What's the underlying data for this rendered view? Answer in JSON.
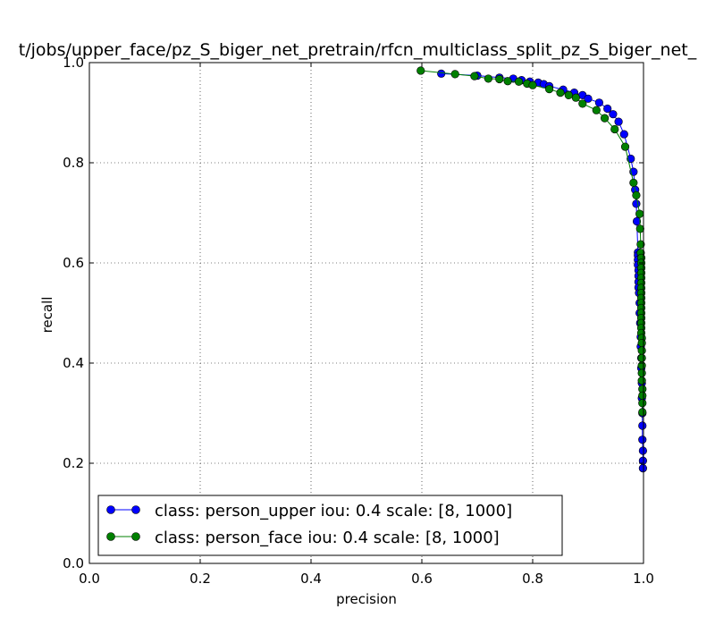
{
  "chart_data": {
    "type": "line",
    "title": "t/jobs/upper_face/pz_S_biger_net_pretrain/rfcn_multiclass_split_pz_S_biger_net_",
    "xlabel": "precision",
    "ylabel": "recall",
    "xlim": [
      0.0,
      1.0
    ],
    "ylim": [
      0.0,
      1.0
    ],
    "xticks": [
      "0.0",
      "0.2",
      "0.4",
      "0.6",
      "0.8",
      "1.0"
    ],
    "yticks": [
      "0.0",
      "0.2",
      "0.4",
      "0.6",
      "0.8",
      "1.0"
    ],
    "grid": true,
    "legend_position": "lower-left",
    "series": [
      {
        "name": "class: person_upper iou: 0.4 scale: [8, 1000]",
        "color": "#0000ff",
        "marker": "circle",
        "points": [
          [
            0.635,
            0.978
          ],
          [
            0.7,
            0.974
          ],
          [
            0.74,
            0.97
          ],
          [
            0.765,
            0.968
          ],
          [
            0.78,
            0.965
          ],
          [
            0.795,
            0.962
          ],
          [
            0.81,
            0.96
          ],
          [
            0.82,
            0.957
          ],
          [
            0.83,
            0.953
          ],
          [
            0.855,
            0.946
          ],
          [
            0.875,
            0.94
          ],
          [
            0.89,
            0.935
          ],
          [
            0.9,
            0.928
          ],
          [
            0.92,
            0.92
          ],
          [
            0.935,
            0.908
          ],
          [
            0.945,
            0.897
          ],
          [
            0.955,
            0.882
          ],
          [
            0.965,
            0.857
          ],
          [
            0.977,
            0.808
          ],
          [
            0.982,
            0.782
          ],
          [
            0.985,
            0.746
          ],
          [
            0.987,
            0.718
          ],
          [
            0.988,
            0.683
          ],
          [
            0.99,
            0.621
          ],
          [
            0.99,
            0.615
          ],
          [
            0.99,
            0.606
          ],
          [
            0.99,
            0.596
          ],
          [
            0.991,
            0.585
          ],
          [
            0.991,
            0.574
          ],
          [
            0.991,
            0.562
          ],
          [
            0.991,
            0.551
          ],
          [
            0.992,
            0.54
          ],
          [
            0.993,
            0.52
          ],
          [
            0.993,
            0.5
          ],
          [
            0.994,
            0.48
          ],
          [
            0.995,
            0.452
          ],
          [
            0.995,
            0.433
          ],
          [
            0.996,
            0.41
          ],
          [
            0.996,
            0.39
          ],
          [
            0.997,
            0.36
          ],
          [
            0.997,
            0.33
          ],
          [
            0.998,
            0.3
          ],
          [
            0.998,
            0.275
          ],
          [
            0.998,
            0.247
          ],
          [
            0.999,
            0.225
          ],
          [
            0.999,
            0.205
          ],
          [
            0.999,
            0.19
          ]
        ]
      },
      {
        "name": "class: person_face iou: 0.4 scale: [8, 1000]",
        "color": "#008000",
        "marker": "circle",
        "points": [
          [
            0.598,
            0.984
          ],
          [
            0.66,
            0.977
          ],
          [
            0.695,
            0.973
          ],
          [
            0.72,
            0.968
          ],
          [
            0.74,
            0.967
          ],
          [
            0.755,
            0.963
          ],
          [
            0.775,
            0.962
          ],
          [
            0.79,
            0.958
          ],
          [
            0.8,
            0.955
          ],
          [
            0.83,
            0.947
          ],
          [
            0.85,
            0.94
          ],
          [
            0.865,
            0.935
          ],
          [
            0.878,
            0.93
          ],
          [
            0.89,
            0.918
          ],
          [
            0.915,
            0.905
          ],
          [
            0.93,
            0.889
          ],
          [
            0.948,
            0.867
          ],
          [
            0.967,
            0.832
          ],
          [
            0.982,
            0.76
          ],
          [
            0.987,
            0.735
          ],
          [
            0.993,
            0.698
          ],
          [
            0.994,
            0.668
          ],
          [
            0.995,
            0.637
          ],
          [
            0.995,
            0.62
          ],
          [
            0.996,
            0.61
          ],
          [
            0.996,
            0.6
          ],
          [
            0.996,
            0.59
          ],
          [
            0.996,
            0.58
          ],
          [
            0.996,
            0.57
          ],
          [
            0.996,
            0.56
          ],
          [
            0.996,
            0.55
          ],
          [
            0.996,
            0.54
          ],
          [
            0.996,
            0.53
          ],
          [
            0.996,
            0.52
          ],
          [
            0.996,
            0.51
          ],
          [
            0.996,
            0.5
          ],
          [
            0.996,
            0.49
          ],
          [
            0.996,
            0.48
          ],
          [
            0.996,
            0.47
          ],
          [
            0.996,
            0.46
          ],
          [
            0.997,
            0.45
          ],
          [
            0.997,
            0.44
          ],
          [
            0.997,
            0.425
          ],
          [
            0.997,
            0.41
          ],
          [
            0.997,
            0.395
          ],
          [
            0.997,
            0.38
          ],
          [
            0.997,
            0.365
          ],
          [
            0.998,
            0.348
          ],
          [
            0.998,
            0.335
          ],
          [
            0.998,
            0.32
          ],
          [
            0.998,
            0.302
          ]
        ]
      }
    ]
  }
}
